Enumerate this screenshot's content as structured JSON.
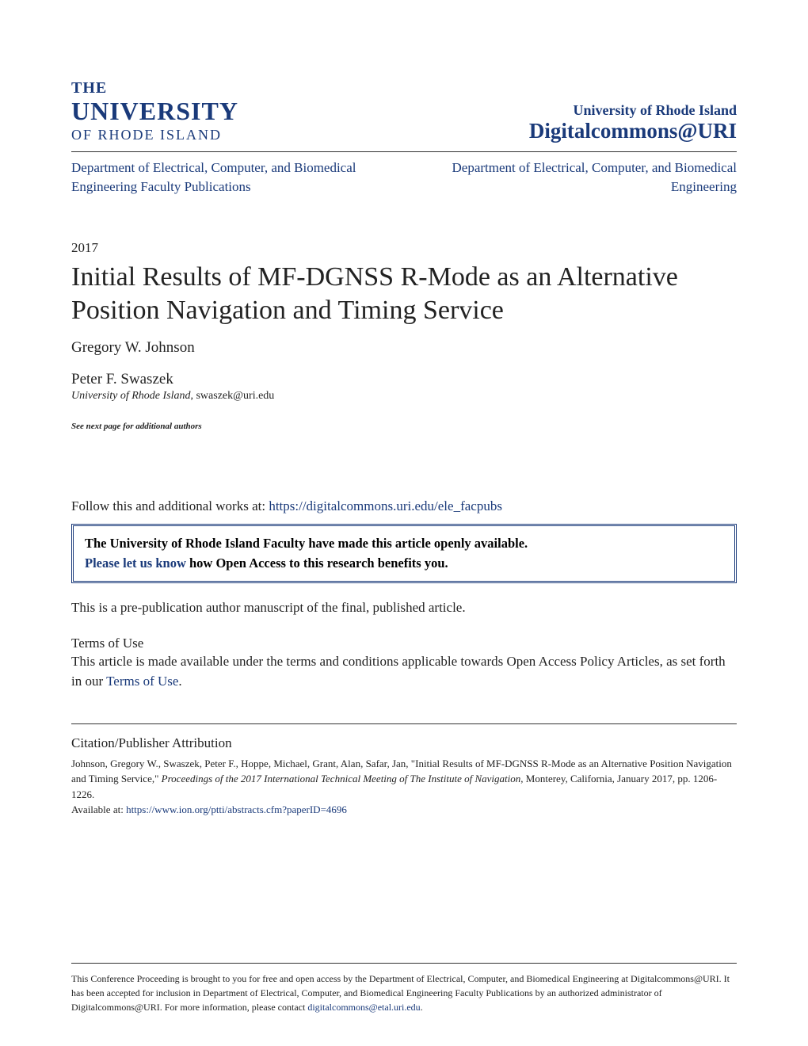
{
  "colors": {
    "brand_blue": "#1a3a7a",
    "text": "#222222",
    "background": "#ffffff",
    "divider": "#333333"
  },
  "header": {
    "logo_the": "THE",
    "logo_univ": "UNIVERSITY",
    "logo_ri": "OF RHODE ISLAND",
    "institution": "University of Rhode Island",
    "repository": "Digitalcommons@URI"
  },
  "departments": {
    "left": "Department of Electrical, Computer, and Biomedical Engineering Faculty Publications",
    "right": "Department of Electrical, Computer, and Biomedical Engineering"
  },
  "year": "2017",
  "title": "Initial Results of MF-DGNSS R-Mode as an Alternative Position Navigation and Timing Service",
  "authors": {
    "author1": "Gregory W. Johnson",
    "author2": "Peter F. Swaszek",
    "affiliation_inst": "University of Rhode Island",
    "affiliation_email": ", swaszek@uri.edu"
  },
  "see_next": "See next page for additional authors",
  "follow": {
    "prefix": "Follow this and additional works at: ",
    "url": "https://digitalcommons.uri.edu/ele_facpubs"
  },
  "open_access": {
    "line1": "The University of Rhode Island Faculty have made this article openly available.",
    "link": "Please let us know",
    "line2_suffix": " how Open Access to this research benefits you."
  },
  "pre_pub": "This is a pre-publication author manuscript of the final, published article.",
  "terms": {
    "heading": "Terms of Use",
    "text_prefix": "This article is made available under the terms and conditions applicable towards Open Access Policy Articles, as set forth in our ",
    "link": "Terms of Use",
    "suffix": "."
  },
  "citation": {
    "heading": "Citation/Publisher Attribution",
    "text_prefix": "Johnson, Gregory W., Swaszek, Peter F., Hoppe, Michael, Grant, Alan, Safar, Jan, \"Initial Results of MF-DGNSS R-Mode as an Alternative Position Navigation and Timing Service,\" ",
    "italic": "Proceedings of the 2017 International Technical Meeting of The Institute of Navigation",
    "text_suffix": ", Monterey, California, January 2017, pp. 1206-1226.",
    "available_prefix": "Available at: ",
    "available_url": "https://www.ion.org/ptti/abstracts.cfm?paperID=4696"
  },
  "footer": {
    "text_prefix": "This Conference Proceeding is brought to you for free and open access by the Department of Electrical, Computer, and Biomedical Engineering at Digitalcommons@URI. It has been accepted for inclusion in Department of Electrical, Computer, and Biomedical Engineering Faculty Publications by an authorized administrator of Digitalcommons@URI. For more information, please contact ",
    "email": "digitalcommons@etal.uri.edu",
    "suffix": "."
  }
}
